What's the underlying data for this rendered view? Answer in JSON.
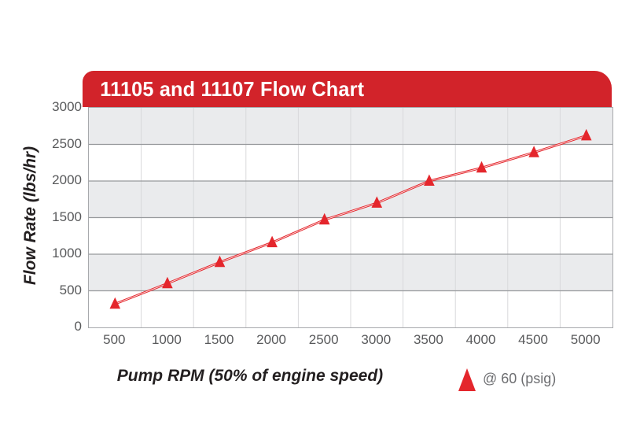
{
  "header": {
    "title": "11105 and 11107 Flow Chart"
  },
  "colors": {
    "banner_red": "#d2232a",
    "line_red": "#e4262c",
    "band_gray": "#eaebed",
    "band_white": "#ffffff",
    "grid_horizontal": "#97999c",
    "grid_vertical": "#d8d9db",
    "plot_border": "#a7a9ac",
    "tick_text": "#58595b",
    "axis_title_text": "#231f20",
    "legend_text": "#6d6e71"
  },
  "legend": {
    "marker_icon": "red-triangle-icon",
    "label": "@ 60 (psig)"
  },
  "chart_data": {
    "type": "line",
    "title": "11105 and 11107 Flow Chart",
    "xlabel": "Pump RPM (50% of engine speed)",
    "ylabel": "Flow Rate (lbs/hr)",
    "categories": [
      500,
      1000,
      1500,
      2000,
      2500,
      3000,
      3500,
      4000,
      4500,
      5000
    ],
    "series": [
      {
        "name": "@ 60 (psig)",
        "marker": "triangle",
        "values": [
          320,
          600,
          890,
          1160,
          1470,
          1700,
          2000,
          2180,
          2390,
          2620
        ]
      }
    ],
    "ylim": [
      0,
      3000
    ],
    "y_ticks": [
      0,
      500,
      1000,
      1500,
      2000,
      2500,
      3000
    ],
    "grid": "horizontal lines every 500, vertical lines at category boundaries",
    "background_bands": "alternating gray/white horizontal bands every 500",
    "legend_position": "bottom-right"
  }
}
